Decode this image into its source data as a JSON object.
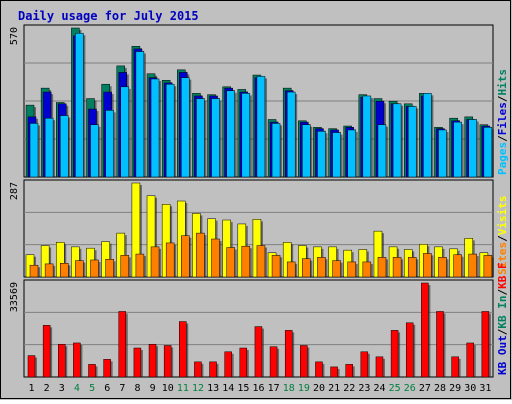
{
  "colors": {
    "background": "#c0c0c0",
    "pages": "#00c0ff",
    "files": "#0000d0",
    "hits": "#008060",
    "visits": "#ffff00",
    "sites": "#ff8000",
    "kb_in": "#008060",
    "kb_out": "#0000d0",
    "kb_f": "#ff0000",
    "title": "#0000c0",
    "weekend_label": "#008040",
    "weekday_label": "#000000"
  },
  "chart_data": {
    "type": "bar",
    "title": "Daily usage for July 2015",
    "categories": [
      "1",
      "2",
      "3",
      "4",
      "5",
      "6",
      "7",
      "8",
      "9",
      "10",
      "11",
      "12",
      "13",
      "14",
      "15",
      "16",
      "17",
      "18",
      "19",
      "20",
      "21",
      "22",
      "23",
      "24",
      "25",
      "26",
      "27",
      "28",
      "29",
      "30",
      "31"
    ],
    "weekend_days": [
      "4",
      "5",
      "11",
      "12",
      "18",
      "19",
      "25",
      "26"
    ],
    "panels": [
      {
        "id": "hits-files-pages",
        "max_label": "570",
        "ymax": 570,
        "legend": [
          {
            "text": "Hits",
            "color": "#008060"
          },
          {
            "text": "/",
            "color": "#000000"
          },
          {
            "text": "Files",
            "color": "#0000d0"
          },
          {
            "text": "/",
            "color": "#000000"
          },
          {
            "text": "Pages",
            "color": "#00c0ff"
          }
        ],
        "series": [
          {
            "name": "Hits",
            "color": "#008060",
            "values": [
              275,
              340,
              285,
              570,
              300,
              355,
              425,
              500,
              395,
              370,
              410,
              320,
              315,
              345,
              335,
              390,
              220,
              340,
              215,
              190,
              185,
              195,
              315,
              300,
              290,
              280,
              320,
              190,
              225,
              230,
              200
            ]
          },
          {
            "name": "Files",
            "color": "#0000d0",
            "values": [
              230,
              325,
              280,
              540,
              260,
              325,
              400,
              490,
              380,
              360,
              400,
              310,
              310,
              340,
              325,
              380,
              210,
              330,
              210,
              185,
              180,
              190,
              305,
              290,
              280,
              270,
              310,
              185,
              215,
              220,
              195
            ]
          },
          {
            "name": "Pages",
            "color": "#00c0ff",
            "values": [
              205,
              225,
              235,
              550,
              200,
              255,
              345,
              480,
              375,
              355,
              380,
              300,
              300,
              330,
              320,
              385,
              205,
              325,
              200,
              175,
              170,
              180,
              310,
              200,
              280,
              270,
              320,
              180,
              210,
              220,
              190
            ]
          }
        ]
      },
      {
        "id": "visits-sites",
        "max_label": "287",
        "ymax": 287,
        "legend": [
          {
            "text": "Visits",
            "color": "#ffff00"
          },
          {
            "text": "/",
            "color": "#000000"
          },
          {
            "text": "Sites",
            "color": "#ff8000"
          }
        ],
        "series": [
          {
            "name": "Visits",
            "color": "#ffff00",
            "values": [
              68,
              96,
              106,
              92,
              88,
              108,
              134,
              287,
              248,
              222,
              232,
              194,
              178,
              174,
              162,
              176,
              74,
              106,
              96,
              92,
              92,
              82,
              84,
              140,
              92,
              84,
              100,
              92,
              86,
              118,
              74
            ]
          },
          {
            "name": "Sites",
            "color": "#ff8000",
            "values": [
              36,
              40,
              42,
              50,
              52,
              54,
              66,
              70,
              92,
              104,
              126,
              134,
              116,
              90,
              94,
              96,
              66,
              46,
              56,
              60,
              50,
              46,
              46,
              60,
              60,
              60,
              72,
              60,
              68,
              70,
              66
            ]
          }
        ]
      },
      {
        "id": "kb",
        "max_label": "33569",
        "ymax": 33569,
        "legend": [
          {
            "text": "KB F",
            "color": "#ff0000"
          },
          {
            "text": "/",
            "color": "#000000"
          },
          {
            "text": "KB In",
            "color": "#008060"
          },
          {
            "text": "/",
            "color": "#000000"
          },
          {
            "text": "KB Out",
            "color": "#0000d0"
          }
        ],
        "series": [
          {
            "name": "KB F",
            "color": "#ff0000",
            "values": [
              7650,
              18450,
              11700,
              12160,
              4500,
              6300,
              23400,
              10350,
              11700,
              11250,
              19800,
              5400,
              5400,
              9000,
              10350,
              18000,
              10800,
              16650,
              11250,
              5400,
              3600,
              4500,
              9000,
              7200,
              16650,
              19350,
              33569,
              23400,
              7200,
              12150,
              23400
            ]
          }
        ]
      }
    ]
  }
}
